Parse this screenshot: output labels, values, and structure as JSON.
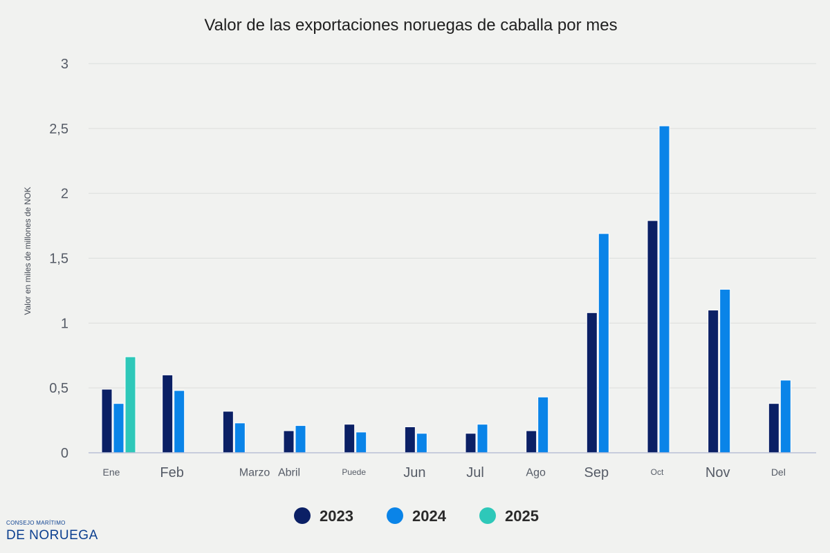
{
  "chart_data": {
    "type": "bar",
    "title": "Valor de las exportaciones noruegas de caballa por mes",
    "ylabel": "Valor en miles de millones de NOK",
    "xlabel": "",
    "ylim": [
      0,
      3
    ],
    "yticks": [
      0,
      0.5,
      1,
      1.5,
      2,
      2.5,
      3
    ],
    "ytick_labels": [
      "0",
      "0,5",
      "1",
      "1,5",
      "2",
      "2,5",
      "3"
    ],
    "grid": true,
    "legend_position": "bottom-center",
    "categories": [
      "Ene",
      "Feb",
      "Marzo",
      "Abril",
      "Puede",
      "Jun",
      "Jul",
      "Ago",
      "Sep",
      "Oct",
      "Nov",
      "Del"
    ],
    "series": [
      {
        "name": "2023",
        "color": "#0b2065",
        "values": [
          0.49,
          0.6,
          0.32,
          0.17,
          0.22,
          0.2,
          0.15,
          0.17,
          1.08,
          1.79,
          1.1,
          0.38
        ]
      },
      {
        "name": "2024",
        "color": "#0a84e8",
        "values": [
          0.38,
          0.48,
          0.23,
          0.21,
          0.16,
          0.15,
          0.22,
          0.43,
          1.69,
          2.52,
          1.26,
          0.56
        ]
      },
      {
        "name": "2025",
        "color": "#2ec8b9",
        "values": [
          0.74,
          null,
          null,
          null,
          null,
          null,
          null,
          null,
          null,
          null,
          null,
          null
        ]
      }
    ]
  },
  "branding": {
    "line1": "CONSEJO MARÍTIMO",
    "line2": "DE NORUEGA"
  }
}
